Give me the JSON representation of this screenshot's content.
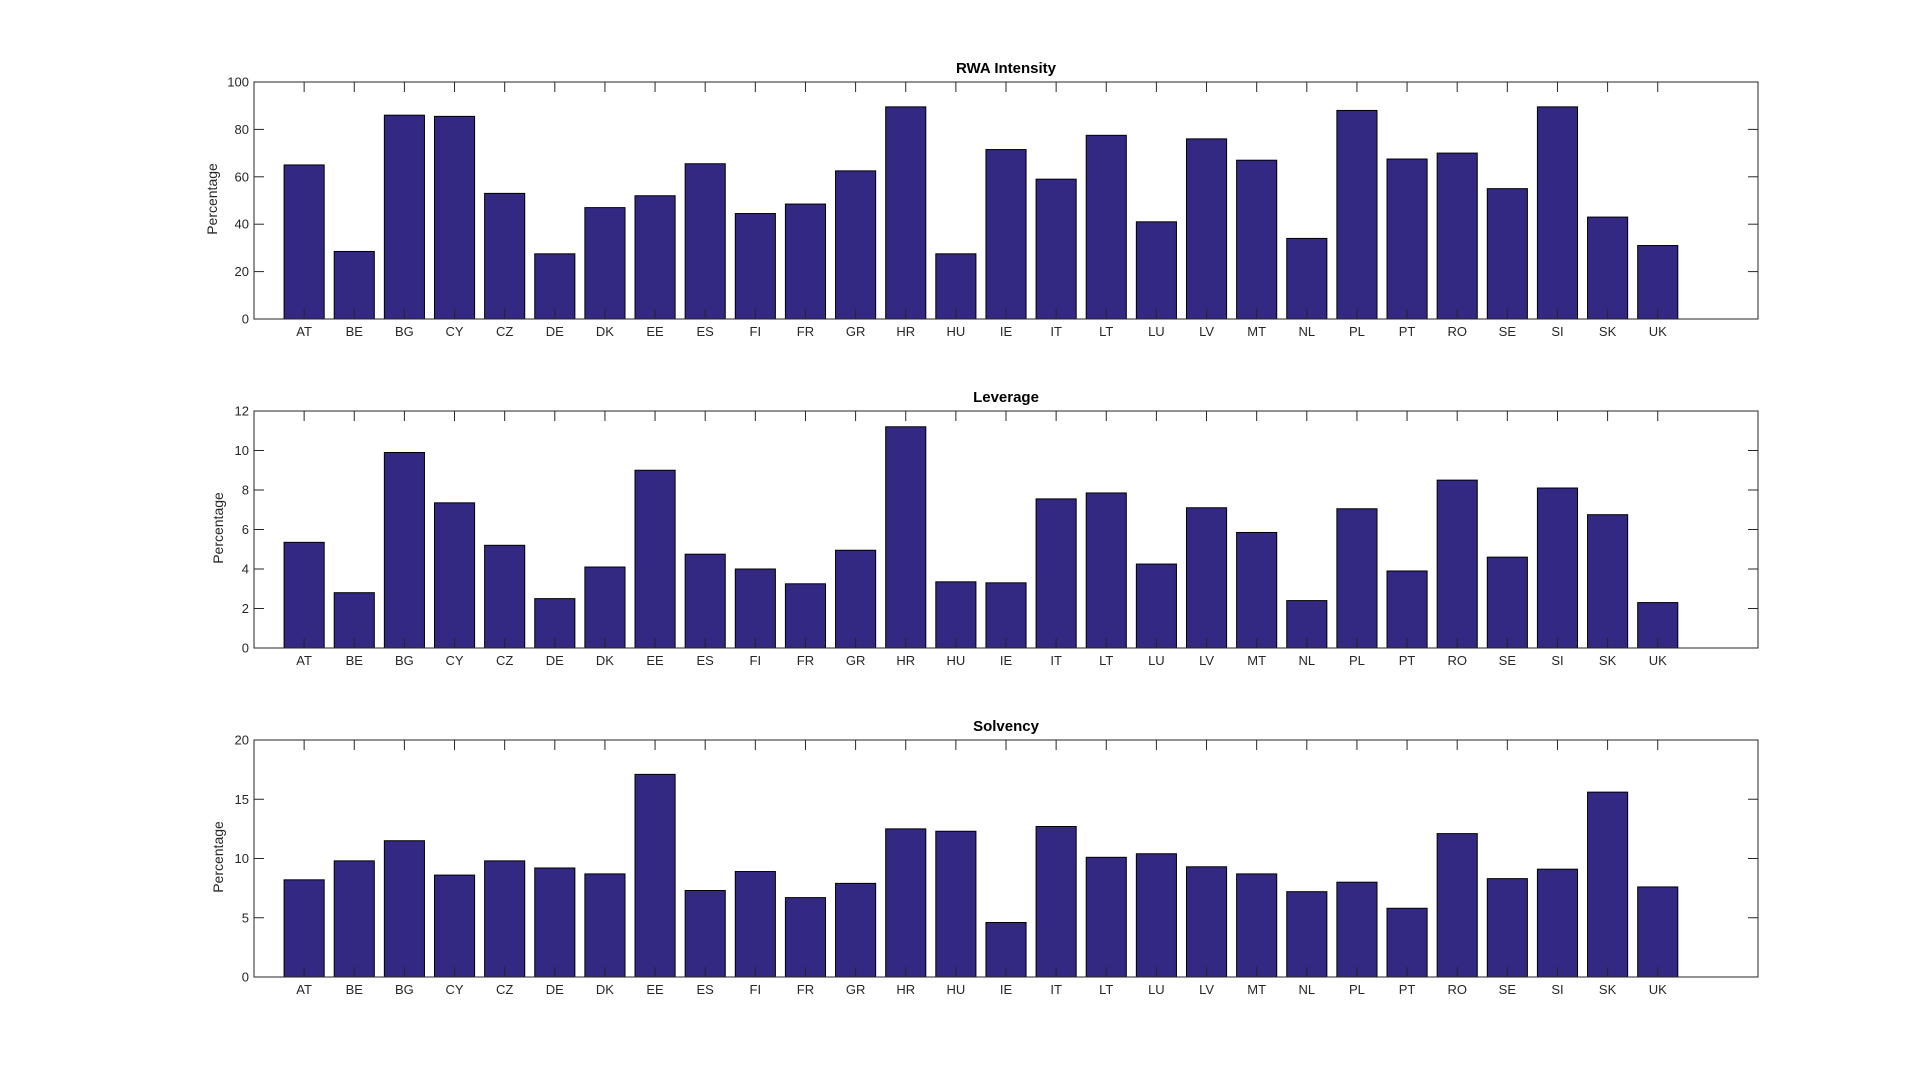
{
  "colors": {
    "bar": "#332882",
    "axes": "#262626",
    "background": "#ffffff"
  },
  "chart_data": [
    {
      "type": "bar",
      "title": "RWA Intensity",
      "xlabel": "",
      "ylabel": "Percentage",
      "ylim": [
        0,
        100
      ],
      "yticks": [
        0,
        20,
        40,
        60,
        80,
        100
      ],
      "grid": false,
      "categories": [
        "AT",
        "BE",
        "BG",
        "CY",
        "CZ",
        "DE",
        "DK",
        "EE",
        "ES",
        "FI",
        "FR",
        "GR",
        "HR",
        "HU",
        "IE",
        "IT",
        "LT",
        "LU",
        "LV",
        "MT",
        "NL",
        "PL",
        "PT",
        "RO",
        "SE",
        "SI",
        "SK",
        "UK"
      ],
      "values": [
        65,
        28.5,
        86,
        85.5,
        53,
        27.5,
        47,
        52,
        65.5,
        44.5,
        48.5,
        62.5,
        89.5,
        27.5,
        71.5,
        59,
        77.5,
        41,
        76,
        67,
        34,
        88,
        67.5,
        70,
        55,
        89.5,
        43,
        31
      ]
    },
    {
      "type": "bar",
      "title": "Leverage",
      "xlabel": "",
      "ylabel": "Percentage",
      "ylim": [
        0,
        12
      ],
      "yticks": [
        0,
        2,
        4,
        6,
        8,
        10,
        12
      ],
      "grid": false,
      "categories": [
        "AT",
        "BE",
        "BG",
        "CY",
        "CZ",
        "DE",
        "DK",
        "EE",
        "ES",
        "FI",
        "FR",
        "GR",
        "HR",
        "HU",
        "IE",
        "IT",
        "LT",
        "LU",
        "LV",
        "MT",
        "NL",
        "PL",
        "PT",
        "RO",
        "SE",
        "SI",
        "SK",
        "UK"
      ],
      "values": [
        5.35,
        2.8,
        9.9,
        7.35,
        5.2,
        2.5,
        4.1,
        9.0,
        4.75,
        4.0,
        3.25,
        4.95,
        11.2,
        3.35,
        3.3,
        7.55,
        7.85,
        4.25,
        7.1,
        5.85,
        2.4,
        7.05,
        3.9,
        8.5,
        4.6,
        8.1,
        6.75,
        2.3
      ]
    },
    {
      "type": "bar",
      "title": "Solvency",
      "xlabel": "",
      "ylabel": "Percentage",
      "ylim": [
        0,
        20
      ],
      "yticks": [
        0,
        5,
        10,
        15,
        20
      ],
      "grid": false,
      "categories": [
        "AT",
        "BE",
        "BG",
        "CY",
        "CZ",
        "DE",
        "DK",
        "EE",
        "ES",
        "FI",
        "FR",
        "GR",
        "HR",
        "HU",
        "IE",
        "IT",
        "LT",
        "LU",
        "LV",
        "MT",
        "NL",
        "PL",
        "PT",
        "RO",
        "SE",
        "SI",
        "SK",
        "UK"
      ],
      "values": [
        8.2,
        9.8,
        11.5,
        8.6,
        9.8,
        9.2,
        8.7,
        17.1,
        7.3,
        8.9,
        6.7,
        7.9,
        12.5,
        12.3,
        4.6,
        12.7,
        10.1,
        10.4,
        9.3,
        8.7,
        7.2,
        8.0,
        5.8,
        12.1,
        8.3,
        9.1,
        15.6,
        7.6
      ]
    }
  ]
}
